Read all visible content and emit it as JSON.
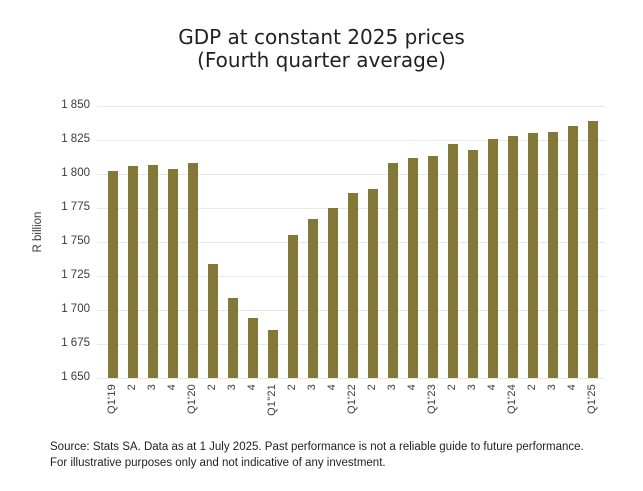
{
  "title": {
    "line1": "GDP at constant 2025 prices",
    "line2": "(Fourth quarter average)"
  },
  "footer": {
    "text": "Source: Stats SA. Data as at 1 July 2025. Past performance is not a reliable guide to future performance. For illustrative purposes only and not indicative of any investment."
  },
  "chart_data": {
    "type": "bar",
    "title": "GDP at constant 2025 prices (Fourth quarter average)",
    "xlabel": "",
    "ylabel": "R billion",
    "ylim": [
      1650,
      1850
    ],
    "ytick_step": 25,
    "ytick_labels": [
      "1 850",
      "1 825",
      "1 800",
      "1 775",
      "1 750",
      "1 725",
      "1 700",
      "1 675",
      "1 650"
    ],
    "ytick_values": [
      1850,
      1825,
      1800,
      1775,
      1750,
      1725,
      1700,
      1675,
      1650
    ],
    "grid": "horizontal",
    "legend_position": "none",
    "bar_color": "#847839",
    "categories": [
      "Q1'19",
      "2",
      "3",
      "4",
      "Q1'20",
      "2",
      "3",
      "4",
      "Q1\"21",
      "2",
      "3",
      "4",
      "Q1'22",
      "2",
      "3",
      "4",
      "Q1'23",
      "2",
      "3",
      "4",
      "Q1'24",
      "2",
      "3",
      "4",
      "Q1'25"
    ],
    "values": [
      1802,
      1806,
      1807,
      1804,
      1808,
      1734,
      1709,
      1694,
      1685,
      1755,
      1767,
      1775,
      1786,
      1789,
      1808,
      1812,
      1813,
      1822,
      1818,
      1826,
      1828,
      1830,
      1831,
      1835,
      1839
    ]
  }
}
